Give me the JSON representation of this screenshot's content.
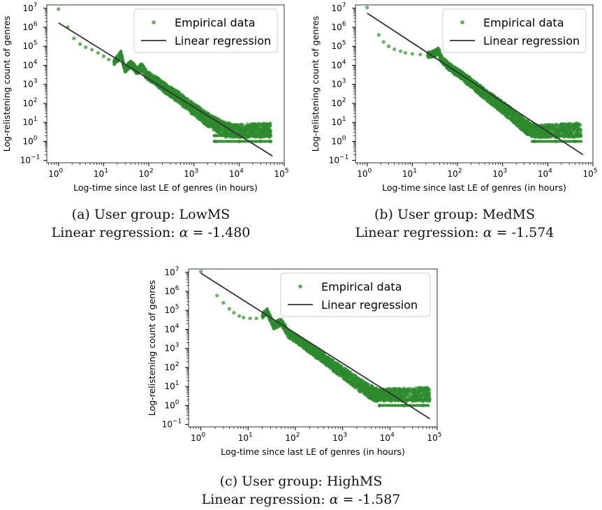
{
  "figure": {
    "panels": [
      {
        "caption_line1": "(a) User group: LowMS",
        "caption_line2_prefix": "Linear regression: ",
        "caption_alpha_symbol": "α",
        "caption_alpha_value": " = -1.480"
      },
      {
        "caption_line1": "(b) User group: MedMS",
        "caption_line2_prefix": "Linear regression: ",
        "caption_alpha_symbol": "α",
        "caption_alpha_value": " = -1.574"
      },
      {
        "caption_line1": "(c) User group: HighMS",
        "caption_line2_prefix": "Linear regression: ",
        "caption_alpha_symbol": "α",
        "caption_alpha_value": " = -1.587"
      }
    ]
  },
  "chart_data": [
    {
      "type": "scatter",
      "xlabel": "Log-time since last LE of genres (in hours)",
      "ylabel": "Log-relistening count of genres",
      "xscale": "log",
      "yscale": "log",
      "xlim": [
        0.55,
        100000
      ],
      "ylim": [
        0.075,
        15000000
      ],
      "x_ticks": [
        1,
        10,
        100,
        1000,
        10000,
        100000
      ],
      "x_tick_labels": [
        {
          "base": "10",
          "exp": "0"
        },
        {
          "base": "10",
          "exp": "1"
        },
        {
          "base": "10",
          "exp": "2"
        },
        {
          "base": "10",
          "exp": "3"
        },
        {
          "base": "10",
          "exp": "4"
        },
        {
          "base": "10",
          "exp": "5"
        }
      ],
      "y_ticks": [
        0.1,
        1,
        10,
        100,
        1000,
        10000,
        100000,
        1000000,
        10000000
      ],
      "y_tick_labels": [
        {
          "base": "10",
          "exp": "−1"
        },
        {
          "base": "10",
          "exp": "0"
        },
        {
          "base": "10",
          "exp": "1"
        },
        {
          "base": "10",
          "exp": "2"
        },
        {
          "base": "10",
          "exp": "3"
        },
        {
          "base": "10",
          "exp": "4"
        },
        {
          "base": "10",
          "exp": "5"
        },
        {
          "base": "10",
          "exp": "6"
        },
        {
          "base": "10",
          "exp": "7"
        }
      ],
      "legend_position": "top-right",
      "series": [
        {
          "name": "Empirical data",
          "kind": "scatter",
          "color": "#2e8b2e",
          "points": [
            [
              1,
              9000000
            ],
            [
              1.6,
              1000000
            ],
            [
              2.2,
              260000
            ],
            [
              3,
              130000
            ],
            [
              4,
              90000
            ],
            [
              5.5,
              66000
            ],
            [
              7.5,
              45000
            ],
            [
              10,
              30000
            ],
            [
              13,
              20000
            ],
            [
              17,
              15000
            ],
            [
              21,
              24000
            ],
            [
              24,
              40000
            ],
            [
              30,
              6000
            ],
            [
              40,
              12000
            ],
            [
              55,
              5000
            ],
            [
              70,
              8000
            ],
            [
              90,
              3000
            ],
            [
              130,
              1800
            ],
            [
              200,
              800
            ],
            [
              300,
              400
            ],
            [
              500,
              180
            ],
            [
              800,
              70
            ],
            [
              1200,
              35
            ],
            [
              2000,
              14
            ],
            [
              3000,
              8
            ],
            [
              5000,
              4
            ],
            [
              8000,
              3
            ],
            [
              15000,
              2
            ],
            [
              30000,
              2
            ],
            [
              3000,
              2
            ],
            [
              8000,
              2
            ],
            [
              20000,
              2
            ],
            [
              50000,
              2
            ],
            [
              3000,
              1
            ],
            [
              10000,
              1
            ],
            [
              30000,
              1
            ],
            [
              50000,
              1
            ]
          ],
          "plateau_levels": [
            {
              "y": 2,
              "x_from": 2800,
              "x_to": 50000
            },
            {
              "y": 1,
              "x_from": 2800,
              "x_to": 50000
            }
          ]
        },
        {
          "name": "Linear regression",
          "kind": "line",
          "color": "#333333",
          "points": [
            [
              1,
              1700000
            ],
            [
              55000,
              0.17
            ]
          ]
        }
      ]
    },
    {
      "type": "scatter",
      "xlabel": "Log-time since last LE of genres (in hours)",
      "ylabel": "Log-relistening count of genres",
      "xscale": "log",
      "yscale": "log",
      "xlim": [
        0.55,
        100000
      ],
      "ylim": [
        0.075,
        15000000
      ],
      "x_ticks": [
        1,
        10,
        100,
        1000,
        10000,
        100000
      ],
      "x_tick_labels": [
        {
          "base": "10",
          "exp": "0"
        },
        {
          "base": "10",
          "exp": "1"
        },
        {
          "base": "10",
          "exp": "2"
        },
        {
          "base": "10",
          "exp": "3"
        },
        {
          "base": "10",
          "exp": "4"
        },
        {
          "base": "10",
          "exp": "5"
        }
      ],
      "y_ticks": [
        0.1,
        1,
        10,
        100,
        1000,
        10000,
        100000,
        1000000,
        10000000
      ],
      "y_tick_labels": [
        {
          "base": "10",
          "exp": "−1"
        },
        {
          "base": "10",
          "exp": "0"
        },
        {
          "base": "10",
          "exp": "1"
        },
        {
          "base": "10",
          "exp": "2"
        },
        {
          "base": "10",
          "exp": "3"
        },
        {
          "base": "10",
          "exp": "4"
        },
        {
          "base": "10",
          "exp": "5"
        },
        {
          "base": "10",
          "exp": "6"
        },
        {
          "base": "10",
          "exp": "7"
        }
      ],
      "legend_position": "top-right",
      "series": [
        {
          "name": "Empirical data",
          "kind": "scatter",
          "color": "#2e8b2e",
          "points": [
            [
              1,
              11000000
            ],
            [
              1.8,
              400000
            ],
            [
              2.3,
              170000
            ],
            [
              3,
              100000
            ],
            [
              4,
              70000
            ],
            [
              5.5,
              55000
            ],
            [
              7,
              45000
            ],
            [
              10,
              40000
            ],
            [
              15,
              37000
            ],
            [
              22,
              35000
            ],
            [
              30,
              40000
            ],
            [
              38,
              55000
            ],
            [
              45,
              20000
            ],
            [
              60,
              10000
            ],
            [
              80,
              6000
            ],
            [
              120,
              3000
            ],
            [
              200,
              1200
            ],
            [
              350,
              400
            ],
            [
              600,
              150
            ],
            [
              1000,
              60
            ],
            [
              1800,
              20
            ],
            [
              3000,
              7
            ],
            [
              5000,
              3
            ],
            [
              10000,
              2
            ],
            [
              25000,
              2
            ],
            [
              50000,
              2
            ],
            [
              5000,
              2
            ],
            [
              12000,
              2
            ],
            [
              30000,
              2
            ],
            [
              5000,
              1
            ],
            [
              15000,
              1
            ],
            [
              40000,
              1
            ]
          ],
          "plateau_levels": [
            {
              "y": 2,
              "x_from": 4500,
              "x_to": 55000
            },
            {
              "y": 1,
              "x_from": 4500,
              "x_to": 55000
            }
          ]
        },
        {
          "name": "Linear regression",
          "kind": "line",
          "color": "#333333",
          "points": [
            [
              1,
              5500000
            ],
            [
              60000,
              0.2
            ]
          ]
        }
      ]
    },
    {
      "type": "scatter",
      "xlabel": "Log-time since last LE of genres (in hours)",
      "ylabel": "Log-relistening count of genres",
      "xscale": "log",
      "yscale": "log",
      "xlim": [
        0.55,
        100000
      ],
      "ylim": [
        0.075,
        15000000
      ],
      "x_ticks": [
        1,
        10,
        100,
        1000,
        10000,
        100000
      ],
      "x_tick_labels": [
        {
          "base": "10",
          "exp": "0"
        },
        {
          "base": "10",
          "exp": "1"
        },
        {
          "base": "10",
          "exp": "2"
        },
        {
          "base": "10",
          "exp": "3"
        },
        {
          "base": "10",
          "exp": "4"
        },
        {
          "base": "10",
          "exp": "5"
        }
      ],
      "y_ticks": [
        0.1,
        1,
        10,
        100,
        1000,
        10000,
        100000,
        1000000,
        10000000
      ],
      "y_tick_labels": [
        {
          "base": "10",
          "exp": "−1"
        },
        {
          "base": "10",
          "exp": "0"
        },
        {
          "base": "10",
          "exp": "1"
        },
        {
          "base": "10",
          "exp": "2"
        },
        {
          "base": "10",
          "exp": "3"
        },
        {
          "base": "10",
          "exp": "4"
        },
        {
          "base": "10",
          "exp": "5"
        },
        {
          "base": "10",
          "exp": "6"
        },
        {
          "base": "10",
          "exp": "7"
        }
      ],
      "legend_position": "top-right",
      "series": [
        {
          "name": "Empirical data",
          "kind": "scatter",
          "color": "#2e8b2e",
          "points": [
            [
              1,
              11000000
            ],
            [
              2.2,
              600000
            ],
            [
              3,
              250000
            ],
            [
              4,
              120000
            ],
            [
              5,
              75000
            ],
            [
              6.5,
              50000
            ],
            [
              8,
              42000
            ],
            [
              11,
              38000
            ],
            [
              15,
              38000
            ],
            [
              20,
              50000
            ],
            [
              25,
              90000
            ],
            [
              35,
              15000
            ],
            [
              50,
              25000
            ],
            [
              70,
              6000
            ],
            [
              100,
              3500
            ],
            [
              200,
              1000
            ],
            [
              400,
              300
            ],
            [
              700,
              100
            ],
            [
              1200,
              40
            ],
            [
              2000,
              15
            ],
            [
              4000,
              5
            ],
            [
              6000,
              3
            ],
            [
              10000,
              2
            ],
            [
              30000,
              2
            ],
            [
              60000,
              2
            ],
            [
              6000,
              2
            ],
            [
              15000,
              2
            ],
            [
              40000,
              2
            ],
            [
              6000,
              1
            ],
            [
              20000,
              1
            ],
            [
              50000,
              1
            ]
          ],
          "plateau_levels": [
            {
              "y": 2,
              "x_from": 5500,
              "x_to": 70000
            },
            {
              "y": 1,
              "x_from": 6000,
              "x_to": 65000
            }
          ]
        },
        {
          "name": "Linear regression",
          "kind": "line",
          "color": "#333333",
          "points": [
            [
              1,
              9000000
            ],
            [
              70000,
              0.2
            ]
          ]
        }
      ]
    }
  ]
}
